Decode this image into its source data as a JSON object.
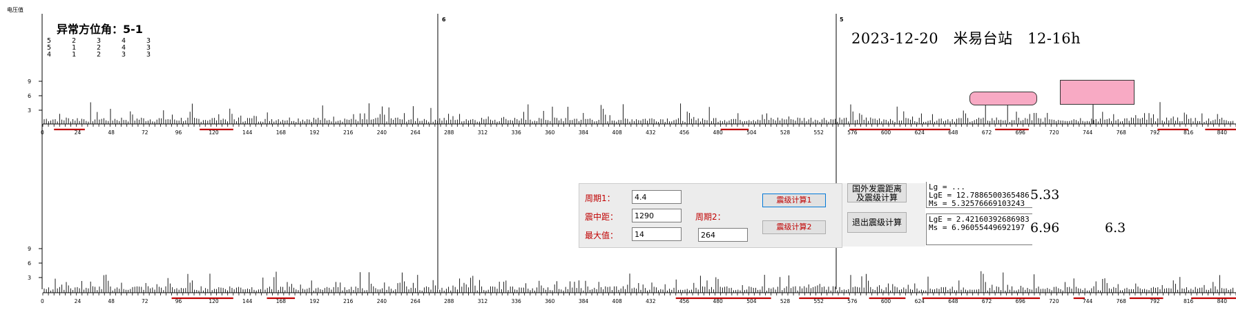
{
  "top_left_label": "电压值",
  "anomaly": {
    "title": "异常方位角：5-1",
    "rows": [
      [
        "5",
        "2",
        "3",
        "4",
        "3"
      ],
      [
        "5",
        "1",
        "2",
        "4",
        "3"
      ],
      [
        "4",
        "1",
        "2",
        "3",
        "3"
      ]
    ]
  },
  "header": "2023-12-20   米易台站   12-16h",
  "segment_labels": [
    "6",
    "5"
  ],
  "y_ticks": [
    "9",
    "6",
    "3"
  ],
  "x_ticks": [
    "0",
    "24",
    "48",
    "72",
    "96",
    "120",
    "144",
    "168",
    "192",
    "216",
    "240",
    "264",
    "288",
    "312",
    "336",
    "360",
    "384",
    "408",
    "432",
    "456",
    "480",
    "504",
    "528",
    "552",
    "576",
    "600",
    "624",
    "648",
    "672",
    "696",
    "720",
    "744",
    "768",
    "792",
    "816",
    "840"
  ],
  "calc": {
    "period1_label": "周期1：",
    "period1_value": "4.4",
    "distance_label": "震中距：",
    "distance_value": "1290",
    "max_label": "最大值：",
    "max_value": "14",
    "period2_label": "周期2：",
    "period2_value": "264",
    "calc1_button": "震级计算1",
    "calc2_button": "震级计算2",
    "foreign_button": "国外发震距离\n及震级计算",
    "exit_button": "退出震级计算",
    "result1": "Lg = ...\nLgE = 12.7886500365486\nMs = 5.32576669103243",
    "result2": "LgE = 2.42160392686983\nMs = 6.96055449692197",
    "ms1": "5.33",
    "ms2": "6.96",
    "ms3": "6.3"
  },
  "colors": {
    "axis": "#000000",
    "red_marker": "#c00000",
    "pink": "#f8aac4"
  }
}
